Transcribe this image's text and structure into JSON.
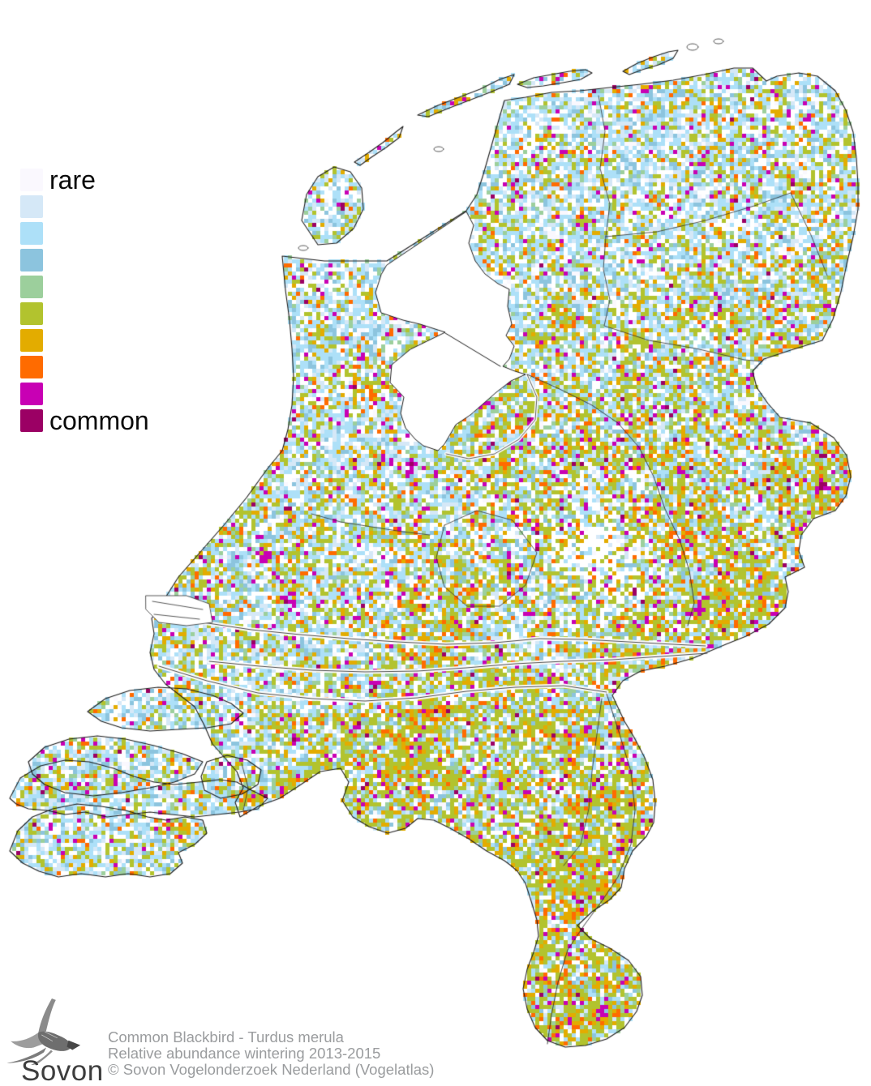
{
  "legend": {
    "rare_label": "rare",
    "common_label": "common",
    "colors": [
      {
        "name": "class-1-rare",
        "hex": "#FAF8FE"
      },
      {
        "name": "class-2",
        "hex": "#D5E8F7"
      },
      {
        "name": "class-3",
        "hex": "#ADE0F8"
      },
      {
        "name": "class-4",
        "hex": "#8CC4DE"
      },
      {
        "name": "class-5",
        "hex": "#9CCF9C"
      },
      {
        "name": "class-6",
        "hex": "#B2C32E"
      },
      {
        "name": "class-7",
        "hex": "#E3AC00"
      },
      {
        "name": "class-8",
        "hex": "#FF6B00"
      },
      {
        "name": "class-9",
        "hex": "#C800B4"
      },
      {
        "name": "class-10-common",
        "hex": "#9B0064"
      }
    ]
  },
  "map": {
    "background_color": "#ffffff",
    "water_color": "#ffffff",
    "outline_color": "#1b1b1b",
    "border_color": "#2e2e2e",
    "cell_size": 5
  },
  "footer": {
    "logo_text": "Sovon",
    "captions": [
      "Common Blackbird - Turdus merula",
      "Relative abundance wintering 2013-2015",
      "© Sovon Vogelonderzoek Nederland (Vogelatlas)"
    ]
  }
}
